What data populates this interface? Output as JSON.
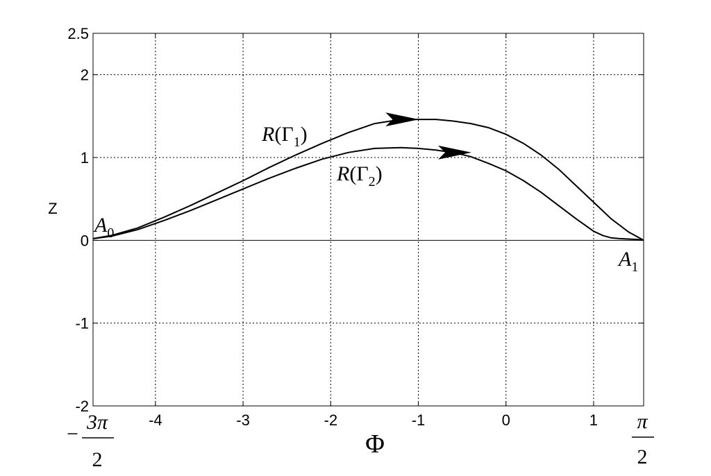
{
  "chart_data": {
    "type": "line",
    "title": "",
    "xlabel": "Φ",
    "ylabel": "Z",
    "xlim": [
      -4.712,
      1.571
    ],
    "ylim": [
      -2,
      2.5
    ],
    "grid": true,
    "x_ticks": [
      -4,
      -3,
      -2,
      -1,
      0,
      1
    ],
    "x_tick_labels": [
      "-4",
      "-3",
      "-2",
      "-1",
      "0",
      "1"
    ],
    "y_ticks": [
      -2,
      -1,
      0,
      1,
      2,
      2.5
    ],
    "y_tick_labels": [
      "-2",
      "-1",
      "0",
      "1",
      "2",
      "2.5"
    ],
    "x_extra_labels": {
      "left": {
        "sign": "−",
        "numerator": "3π",
        "denominator": "2"
      },
      "right": {
        "numerator": "π",
        "denominator": "2"
      }
    },
    "series": [
      {
        "name": "R(Γ1)",
        "name_base": "R(Γ",
        "name_sub": "1",
        "name_close": ")",
        "x": [
          -4.71,
          -4.5,
          -4.2,
          -3.9,
          -3.6,
          -3.3,
          -3.0,
          -2.7,
          -2.4,
          -2.1,
          -1.8,
          -1.5,
          -1.2,
          -1.0,
          -0.8,
          -0.6,
          -0.4,
          -0.2,
          0.0,
          0.2,
          0.4,
          0.6,
          0.8,
          1.0,
          1.2,
          1.4,
          1.571
        ],
        "y": [
          0.02,
          0.06,
          0.15,
          0.28,
          0.42,
          0.57,
          0.72,
          0.88,
          1.03,
          1.17,
          1.3,
          1.41,
          1.46,
          1.46,
          1.46,
          1.44,
          1.41,
          1.36,
          1.28,
          1.17,
          1.03,
          0.86,
          0.66,
          0.46,
          0.26,
          0.1,
          0.0
        ]
      },
      {
        "name": "R(Γ2)",
        "name_base": "R(Γ",
        "name_sub": "2",
        "name_close": ")",
        "x": [
          -4.71,
          -4.5,
          -4.2,
          -3.9,
          -3.6,
          -3.3,
          -3.0,
          -2.7,
          -2.4,
          -2.1,
          -1.8,
          -1.5,
          -1.2,
          -1.0,
          -0.8,
          -0.6,
          -0.4,
          -0.2,
          0.0,
          0.2,
          0.4,
          0.6,
          0.8,
          1.0,
          1.1,
          1.2,
          1.3,
          1.4,
          1.5,
          1.571
        ],
        "y": [
          0.02,
          0.05,
          0.13,
          0.24,
          0.36,
          0.49,
          0.62,
          0.75,
          0.87,
          0.98,
          1.06,
          1.11,
          1.12,
          1.11,
          1.09,
          1.06,
          1.01,
          0.93,
          0.84,
          0.72,
          0.58,
          0.42,
          0.26,
          0.11,
          0.06,
          0.03,
          0.02,
          0.015,
          0.01,
          0.0
        ]
      }
    ],
    "arrows": [
      {
        "series": "R(Γ1)",
        "x": -1.2,
        "y": 1.46
      },
      {
        "series": "R(Γ2)",
        "x": -0.6,
        "y": 1.06
      }
    ],
    "annotations": [
      {
        "base": "A",
        "sub": "0",
        "x": -4.75,
        "y": 0.08
      },
      {
        "base": "A",
        "sub": "1",
        "x": 1.3,
        "y": -0.2
      }
    ]
  }
}
